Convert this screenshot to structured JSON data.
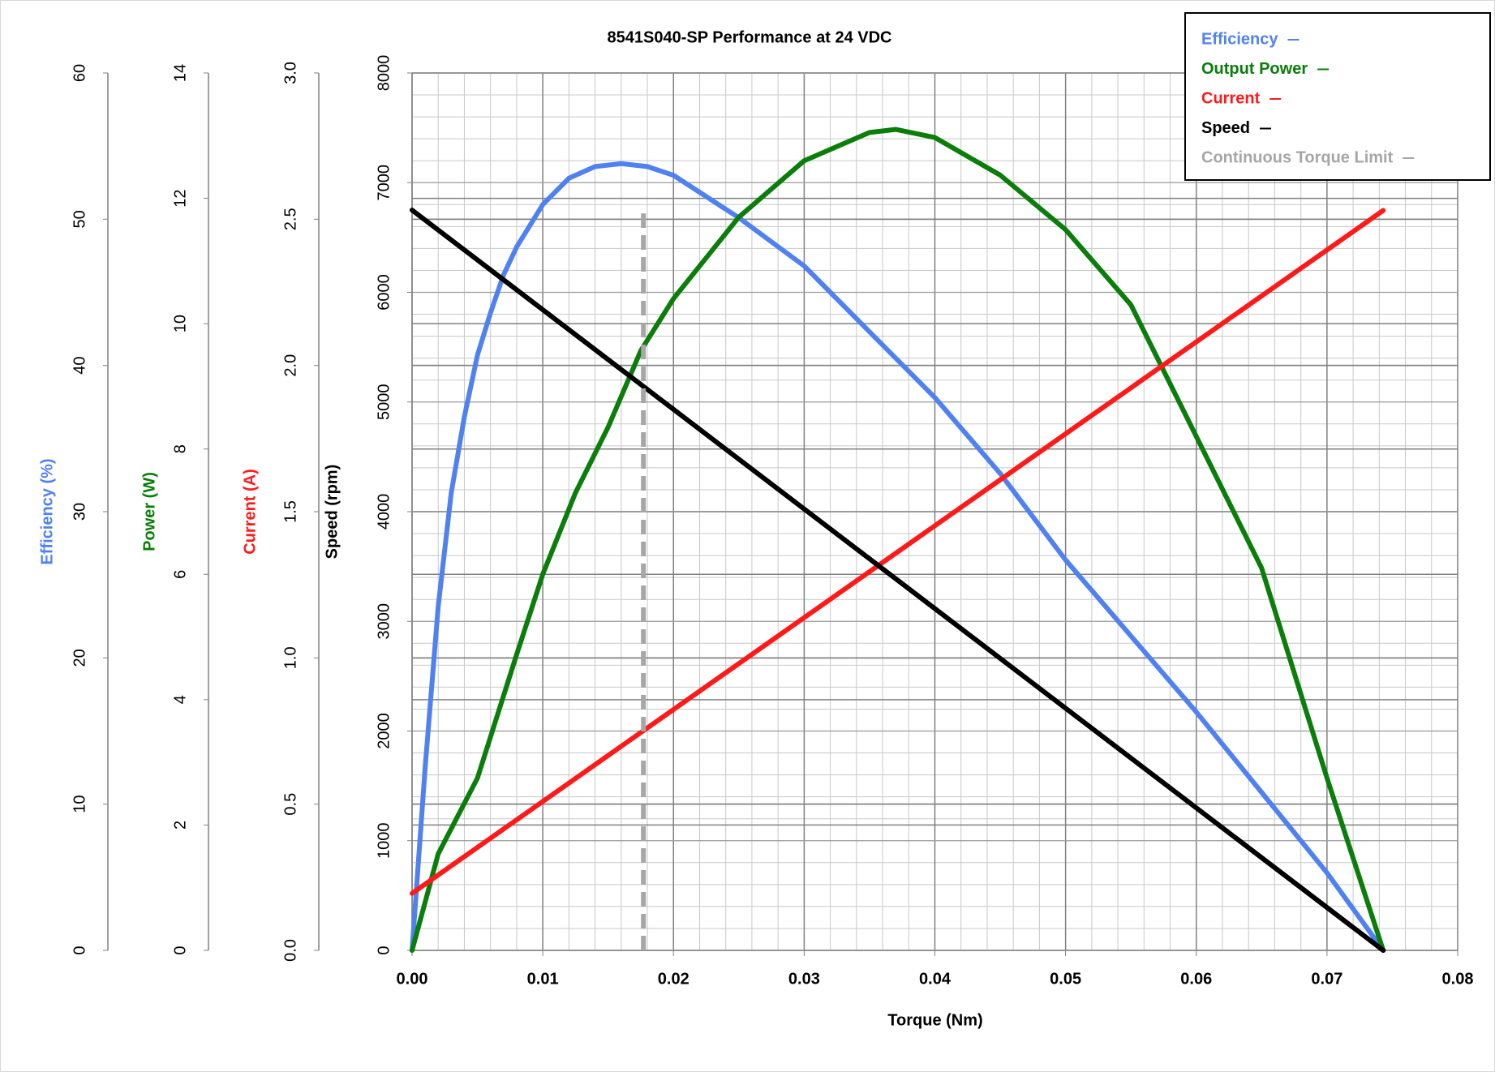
{
  "chart_data": {
    "type": "line",
    "title": "8541S040-SP  Performance  at 24  VDC",
    "x_label": "Torque (Nm)",
    "xlim": [
      0,
      0.08
    ],
    "xticks": [
      {
        "value": 0,
        "label": "0.00"
      },
      0.01,
      0.02,
      0.03,
      0.04,
      0.05,
      0.06,
      0.07,
      0.08
    ],
    "grid": true,
    "legend_position": "upper right",
    "axes": [
      {
        "label": "Efficiency (%)",
        "color": "#4f81f0",
        "lim": [
          0,
          60
        ],
        "ticks": [
          0,
          10,
          20,
          30,
          40,
          50,
          60
        ]
      },
      {
        "label": "Power (W)",
        "color": "#0a7d0a",
        "lim": [
          0,
          14
        ],
        "ticks": [
          0,
          2,
          4,
          6,
          8,
          10,
          12,
          14
        ]
      },
      {
        "label": "Current (A)",
        "color": "#ff1a1a",
        "lim": [
          0,
          3
        ],
        "ticks": [
          {
            "value": 0,
            "label": "0.0"
          },
          0.5,
          {
            "value": 1,
            "label": "1.0"
          },
          1.5,
          {
            "value": 2,
            "label": "2.0"
          },
          2.5,
          {
            "value": 3,
            "label": "3.0"
          }
        ]
      },
      {
        "label": "Speed (rpm)",
        "color": "#000000",
        "lim": [
          0,
          8000
        ],
        "ticks": [
          0,
          1000,
          2000,
          3000,
          4000,
          5000,
          6000,
          7000,
          8000
        ]
      }
    ],
    "series": [
      {
        "name": "Efficiency",
        "color": "#4f81f0",
        "axis": 0,
        "x": [
          0,
          0.001,
          0.002,
          0.003,
          0.004,
          0.005,
          0.006,
          0.007,
          0.008,
          0.01,
          0.012,
          0.014,
          0.016,
          0.018,
          0.02,
          0.025,
          0.03,
          0.035,
          0.04,
          0.045,
          0.05,
          0.055,
          0.06,
          0.065,
          0.07,
          0.0743
        ],
        "values": [
          0,
          12.5,
          23.5,
          31.3,
          36.5,
          40.7,
          43.6,
          46.2,
          48.1,
          51.0,
          52.8,
          53.6,
          53.8,
          53.6,
          53.0,
          50.1,
          46.8,
          42.3,
          37.8,
          32.6,
          26.7,
          21.5,
          16.3,
          10.8,
          5.3,
          0
        ]
      },
      {
        "name": "Output Power",
        "color": "#0a7d0a",
        "axis": 1,
        "x": [
          0,
          0.002,
          0.005,
          0.008,
          0.01,
          0.0125,
          0.015,
          0.0175,
          0.02,
          0.025,
          0.03,
          0.035,
          0.037,
          0.04,
          0.045,
          0.05,
          0.055,
          0.06,
          0.065,
          0.07,
          0.0743
        ],
        "values": [
          0,
          1.54,
          2.75,
          4.72,
          6.0,
          7.3,
          8.35,
          9.57,
          10.4,
          11.7,
          12.6,
          13.05,
          13.1,
          12.97,
          12.37,
          11.5,
          10.3,
          8.2,
          6.1,
          2.75,
          0
        ]
      },
      {
        "name": "Current",
        "color": "#ff1a1a",
        "axis": 2,
        "x": [
          0,
          0.0743
        ],
        "values": [
          0.195,
          2.53
        ]
      },
      {
        "name": "Speed",
        "color": "#000000",
        "axis": 3,
        "x": [
          0,
          0.0743
        ],
        "values": [
          6750,
          0
        ]
      },
      {
        "name": "Continuous Torque Limit",
        "color": "#a6a6a6",
        "axis": 3,
        "dashed": true,
        "x": [
          0.0177,
          0.0177
        ],
        "values": [
          0,
          6720
        ]
      }
    ]
  }
}
